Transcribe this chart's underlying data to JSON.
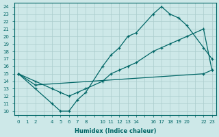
{
  "xlabel": "Humidex (Indice chaleur)",
  "ylabel": "",
  "background_color": "#cde8e8",
  "line_color": "#006666",
  "grid_color": "#aacccc",
  "xlim": [
    -0.5,
    23.5
  ],
  "ylim": [
    9.5,
    24.5
  ],
  "xtick_positions": [
    0,
    1,
    2,
    4,
    5,
    6,
    7,
    8,
    10,
    11,
    12,
    13,
    14,
    16,
    17,
    18,
    19,
    20,
    22,
    23
  ],
  "xtick_labels": [
    "0",
    "1",
    "2",
    "4",
    "5",
    "6",
    "7",
    "8",
    "10",
    "11",
    "12",
    "13",
    "14",
    "16",
    "17",
    "18",
    "19",
    "20",
    "22",
    "23"
  ],
  "ytick_positions": [
    10,
    11,
    12,
    13,
    14,
    15,
    16,
    17,
    18,
    19,
    20,
    21,
    22,
    23,
    24
  ],
  "line1_x": [
    0,
    2,
    4,
    5,
    6,
    7,
    8,
    10,
    11,
    12,
    13,
    14,
    16,
    17,
    18,
    19,
    20,
    22,
    23
  ],
  "line1_y": [
    15,
    13,
    11,
    10,
    10,
    11.5,
    12.5,
    16,
    17.5,
    18.5,
    20,
    20.5,
    23,
    24,
    23,
    22.5,
    21.5,
    18.5,
    17
  ],
  "line2_x": [
    0,
    2,
    4,
    5,
    6,
    7,
    8,
    10,
    11,
    12,
    13,
    14,
    16,
    17,
    18,
    19,
    20,
    22,
    23
  ],
  "line2_y": [
    15,
    14,
    13,
    12.5,
    12,
    12.5,
    13,
    14,
    15,
    15.5,
    16,
    16.5,
    18,
    18.5,
    19,
    19.5,
    20,
    21,
    15.5
  ],
  "line3_x": [
    0,
    2,
    22,
    23
  ],
  "line3_y": [
    15,
    13.5,
    15,
    15.5
  ]
}
